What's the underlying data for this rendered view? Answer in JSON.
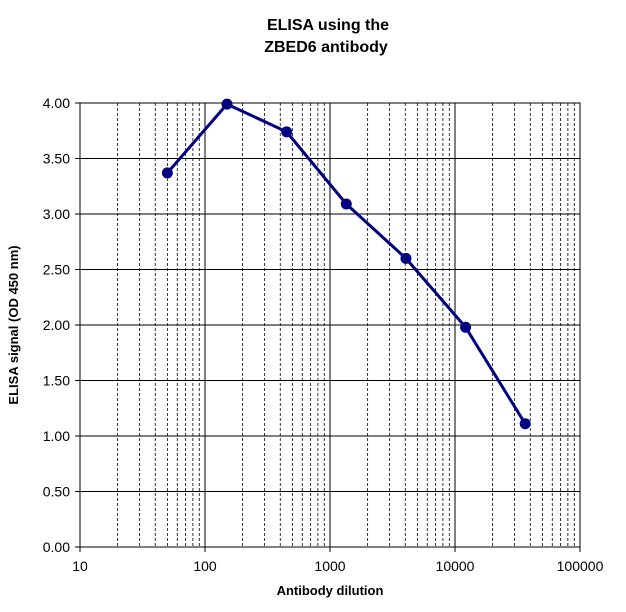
{
  "chart_data": {
    "type": "line",
    "title": [
      "ELISA using the",
      "ZBED6 antibody"
    ],
    "xlabel": "Antibody  dilution",
    "ylabel": "ELISA signal (OD 450 nm)",
    "x_scale": "log",
    "xlim": [
      10,
      100000
    ],
    "ylim": [
      0,
      4
    ],
    "x_ticks": [
      10,
      100,
      1000,
      10000,
      100000
    ],
    "x_tick_labels": [
      "10",
      "100",
      "1000",
      "10000",
      "100000"
    ],
    "y_ticks": [
      0,
      0.5,
      1,
      1.5,
      2,
      2.5,
      3,
      3.5,
      4
    ],
    "y_tick_labels": [
      "0.00",
      "0.50",
      "1.00",
      "1.50",
      "2.00",
      "2.50",
      "3.00",
      "3.50",
      "4.00"
    ],
    "grid": {
      "x_major": true,
      "x_minor": true,
      "y_major": true
    },
    "series": [
      {
        "name": "ZBED6 antibody",
        "color": "#000080",
        "x": [
          50,
          150,
          450,
          1350,
          4050,
          12150,
          36450
        ],
        "values": [
          3.37,
          3.99,
          3.74,
          3.09,
          2.6,
          1.98,
          1.11
        ]
      }
    ]
  }
}
